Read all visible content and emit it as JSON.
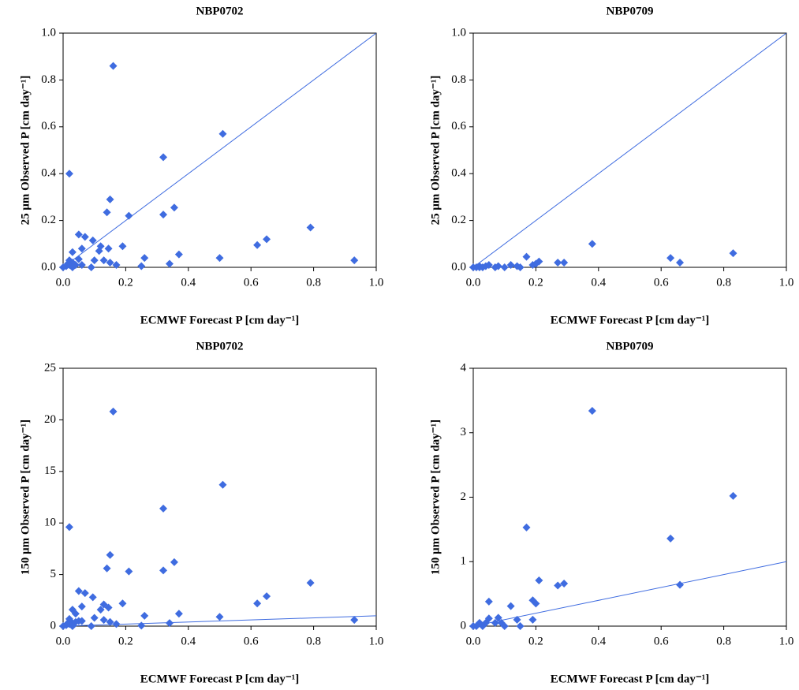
{
  "chart_data": [
    {
      "type": "scatter",
      "title": "NBP0702",
      "xlabel": "ECMWF Forecast P [cm day⁻¹]",
      "ylabel": "25 μm Observed P [cm day⁻¹]",
      "color": "#3f6ce0",
      "x": [
        0.16,
        0.02,
        0.51,
        0.32,
        0.15,
        0.355,
        0.14,
        0.21,
        0.32,
        0.79,
        0.05,
        0.07,
        0.65,
        0.095,
        0.62,
        0.12,
        0.19,
        0.06,
        0.145,
        0.115,
        0.03,
        0.37,
        0.26,
        0.5,
        0.13,
        0.1,
        0.93,
        0.05,
        0.02,
        0.03,
        0.15,
        0.34,
        0.17,
        0.0,
        0.01,
        0.02,
        0.04,
        0.06,
        0.09,
        0.25,
        0.03,
        0.015
      ],
      "values": [
        0.86,
        0.4,
        0.57,
        0.47,
        0.29,
        0.255,
        0.235,
        0.22,
        0.225,
        0.17,
        0.14,
        0.13,
        0.12,
        0.115,
        0.095,
        0.09,
        0.09,
        0.08,
        0.08,
        0.07,
        0.065,
        0.055,
        0.04,
        0.04,
        0.03,
        0.03,
        0.03,
        0.035,
        0.03,
        0.02,
        0.02,
        0.015,
        0.01,
        0.0,
        0.005,
        0.01,
        0.01,
        0.01,
        0.0,
        0.005,
        0.0,
        0.015
      ],
      "reference_line": {
        "color": "#3f6ce0",
        "x": [
          0,
          1
        ],
        "values": [
          0,
          1
        ]
      },
      "xlim": [
        0,
        1
      ],
      "ylim": [
        0,
        1
      ],
      "xticks": [
        {
          "value": 0,
          "label": "0.0"
        },
        {
          "value": 0.2,
          "label": "0.2"
        },
        {
          "value": 0.4,
          "label": "0.4"
        },
        {
          "value": 0.6,
          "label": "0.6"
        },
        {
          "value": 0.8,
          "label": "0.8"
        },
        {
          "value": 1,
          "label": "1.0"
        }
      ],
      "yticks": [
        {
          "value": 0,
          "label": "0.0"
        },
        {
          "value": 0.2,
          "label": "0.2"
        },
        {
          "value": 0.4,
          "label": "0.4"
        },
        {
          "value": 0.6,
          "label": "0.6"
        },
        {
          "value": 0.8,
          "label": "0.8"
        },
        {
          "value": 1,
          "label": "1.0"
        }
      ]
    },
    {
      "type": "scatter",
      "title": "NBP0709",
      "xlabel": "ECMWF Forecast P [cm day⁻¹]",
      "ylabel": "25 μm Observed P [cm day⁻¹]",
      "color": "#3f6ce0",
      "x": [
        0.38,
        0.83,
        0.63,
        0.66,
        0.17,
        0.27,
        0.29,
        0.21,
        0.2,
        0.19,
        0.12,
        0.14,
        0.15,
        0.1,
        0.08,
        0.07,
        0.05,
        0.04,
        0.03,
        0.02,
        0.01,
        0.0,
        0.02
      ],
      "values": [
        0.1,
        0.06,
        0.04,
        0.02,
        0.045,
        0.02,
        0.02,
        0.025,
        0.015,
        0.01,
        0.01,
        0.005,
        0.0,
        0.0,
        0.005,
        0.0,
        0.01,
        0.005,
        0.0,
        0.005,
        0.0,
        0.0,
        0.0
      ],
      "reference_line": {
        "color": "#3f6ce0",
        "x": [
          0,
          1
        ],
        "values": [
          0,
          1
        ]
      },
      "xlim": [
        0,
        1
      ],
      "ylim": [
        0,
        1
      ],
      "xticks": [
        {
          "value": 0,
          "label": "0.0"
        },
        {
          "value": 0.2,
          "label": "0.2"
        },
        {
          "value": 0.4,
          "label": "0.4"
        },
        {
          "value": 0.6,
          "label": "0.6"
        },
        {
          "value": 0.8,
          "label": "0.8"
        },
        {
          "value": 1,
          "label": "1.0"
        }
      ],
      "yticks": [
        {
          "value": 0,
          "label": "0.0"
        },
        {
          "value": 0.2,
          "label": "0.2"
        },
        {
          "value": 0.4,
          "label": "0.4"
        },
        {
          "value": 0.6,
          "label": "0.6"
        },
        {
          "value": 0.8,
          "label": "0.8"
        },
        {
          "value": 1,
          "label": "1.0"
        }
      ]
    },
    {
      "type": "scatter",
      "title": "NBP0702",
      "xlabel": "ECMWF Forecast P [cm day⁻¹]",
      "ylabel": "150 μm Observed P [cm day⁻¹]",
      "color": "#3f6ce0",
      "x": [
        0.16,
        0.02,
        0.51,
        0.32,
        0.15,
        0.355,
        0.14,
        0.21,
        0.32,
        0.79,
        0.05,
        0.07,
        0.65,
        0.095,
        0.62,
        0.12,
        0.13,
        0.19,
        0.06,
        0.145,
        0.03,
        0.37,
        0.26,
        0.5,
        0.04,
        0.1,
        0.93,
        0.05,
        0.02,
        0.03,
        0.15,
        0.34,
        0.17,
        0.0,
        0.01,
        0.02,
        0.04,
        0.06,
        0.09,
        0.25,
        0.03,
        0.015,
        0.13
      ],
      "values": [
        20.8,
        9.6,
        13.7,
        11.4,
        6.9,
        6.2,
        5.6,
        5.3,
        5.4,
        4.2,
        3.4,
        3.2,
        2.9,
        2.8,
        2.2,
        1.6,
        2.1,
        2.2,
        1.9,
        1.8,
        1.6,
        1.2,
        1.0,
        0.9,
        1.2,
        0.8,
        0.6,
        0.5,
        0.7,
        0.3,
        0.4,
        0.3,
        0.2,
        0.0,
        0.1,
        0.2,
        0.4,
        0.5,
        0.0,
        0.05,
        0.0,
        0.3,
        0.6
      ],
      "reference_line": {
        "color": "#3f6ce0",
        "x": [
          0,
          1
        ],
        "values": [
          0,
          1
        ]
      },
      "xlim": [
        0,
        1
      ],
      "ylim": [
        0,
        25
      ],
      "xticks": [
        {
          "value": 0,
          "label": "0.0"
        },
        {
          "value": 0.2,
          "label": "0.2"
        },
        {
          "value": 0.4,
          "label": "0.4"
        },
        {
          "value": 0.6,
          "label": "0.6"
        },
        {
          "value": 0.8,
          "label": "0.8"
        },
        {
          "value": 1,
          "label": "1.0"
        }
      ],
      "yticks": [
        0,
        5,
        10,
        15,
        20,
        25
      ]
    },
    {
      "type": "scatter",
      "title": "NBP0709",
      "xlabel": "ECMWF Forecast P [cm day⁻¹]",
      "ylabel": "150 μm Observed P [cm day⁻¹]",
      "color": "#3f6ce0",
      "x": [
        0.38,
        0.83,
        0.63,
        0.66,
        0.17,
        0.27,
        0.29,
        0.21,
        0.2,
        0.19,
        0.19,
        0.12,
        0.14,
        0.15,
        0.08,
        0.07,
        0.09,
        0.05,
        0.05,
        0.04,
        0.02,
        0.03,
        0.01,
        0.0,
        0.1
      ],
      "values": [
        3.34,
        2.02,
        1.36,
        0.64,
        1.53,
        0.63,
        0.66,
        0.71,
        0.35,
        0.4,
        0.1,
        0.31,
        0.1,
        0.0,
        0.13,
        0.05,
        0.05,
        0.38,
        0.12,
        0.05,
        0.05,
        0.0,
        0.0,
        0.0,
        0.0
      ],
      "reference_line": {
        "color": "#3f6ce0",
        "x": [
          0,
          1
        ],
        "values": [
          0,
          1
        ]
      },
      "xlim": [
        0,
        1
      ],
      "ylim": [
        0,
        4
      ],
      "xticks": [
        {
          "value": 0,
          "label": "0.0"
        },
        {
          "value": 0.2,
          "label": "0.2"
        },
        {
          "value": 0.4,
          "label": "0.4"
        },
        {
          "value": 0.6,
          "label": "0.6"
        },
        {
          "value": 0.8,
          "label": "0.8"
        },
        {
          "value": 1,
          "label": "1.0"
        }
      ],
      "yticks": [
        0,
        1,
        2,
        3,
        4
      ]
    }
  ]
}
